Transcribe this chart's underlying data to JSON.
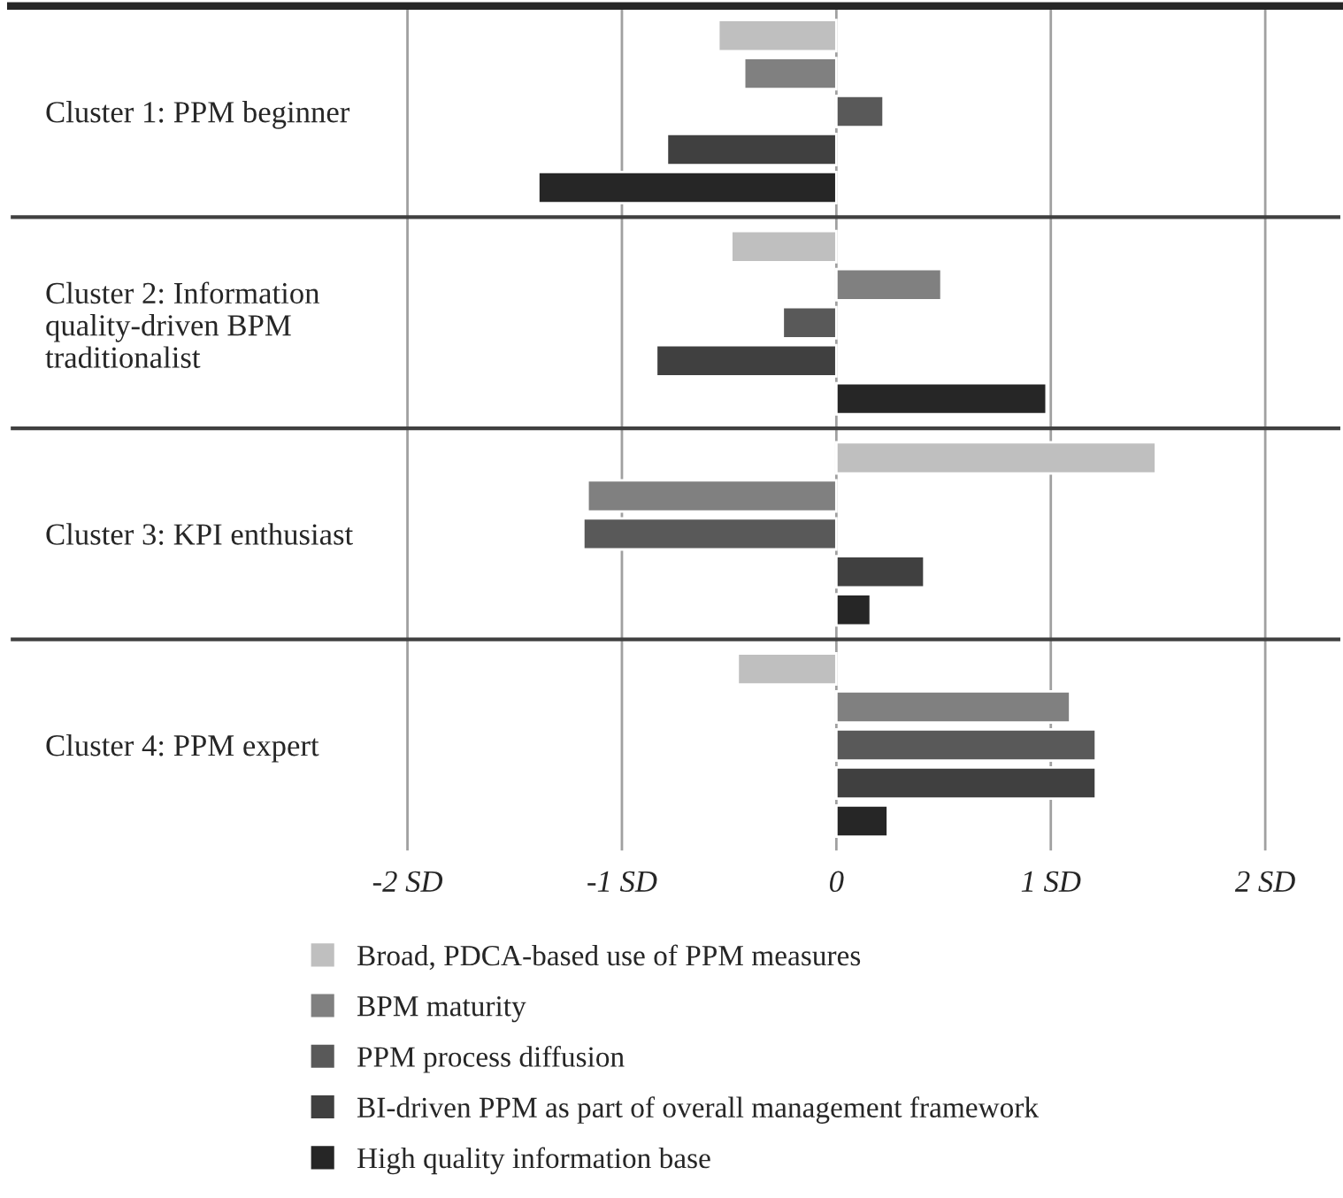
{
  "chart_data": {
    "type": "bar",
    "orientation": "horizontal",
    "categories": [
      "Cluster 1: PPM beginner",
      "Cluster 2: Information\nquality-driven BPM\ntraditionalist",
      "Cluster 3: KPI enthusiast",
      "Cluster 4: PPM expert"
    ],
    "series": [
      {
        "name": "Broad, PDCA-based use of PPM measures",
        "color": "#bfbfbf",
        "values": [
          -0.55,
          -0.49,
          1.49,
          -0.46
        ]
      },
      {
        "name": "BPM maturity",
        "color": "#808080",
        "values": [
          -0.43,
          0.49,
          -1.16,
          1.09
        ]
      },
      {
        "name": "PPM process diffusion",
        "color": "#595959",
        "values": [
          0.22,
          -0.25,
          -1.18,
          1.21
        ]
      },
      {
        "name": "BI-driven PPM as part of overall management framework",
        "color": "#404040",
        "values": [
          -0.79,
          -0.84,
          0.41,
          1.21
        ]
      },
      {
        "name": "High quality information base",
        "color": "#262626",
        "values": [
          -1.39,
          0.98,
          0.16,
          0.24
        ]
      }
    ],
    "xlim": [
      -3.85,
      2.35
    ],
    "xticks": [
      {
        "value": -2,
        "label": "-2 SD"
      },
      {
        "value": -1,
        "label": "-1 SD"
      },
      0,
      {
        "value": 1,
        "label": "1 SD"
      },
      {
        "value": 2,
        "label": "2 SD"
      }
    ],
    "grid": "x",
    "legend": "bottom"
  }
}
